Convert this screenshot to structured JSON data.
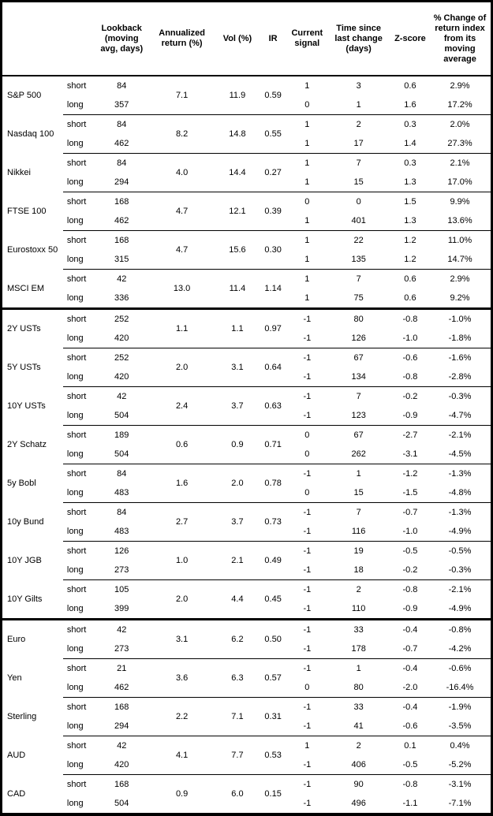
{
  "header": {
    "columns": [
      "Lookback\n(moving\navg, days)",
      "Annualized\nreturn (%)",
      "Vol (%)",
      "IR",
      "Current\nsignal",
      "Time since\nlast change\n(days)",
      "Z-score",
      "% Change of\nreturn index\nfrom its\nmoving\naverage"
    ]
  },
  "sections": [
    {
      "instruments": [
        {
          "name": "S&P 500",
          "annualized_return": "7.1",
          "vol": "11.9",
          "ir": "0.59",
          "rows": [
            {
              "horizon": "short",
              "lookback": "84",
              "signal": "1",
              "time_since_change": "3",
              "z_score": "0.6",
              "pct_change": "2.9%"
            },
            {
              "horizon": "long",
              "lookback": "357",
              "signal": "0",
              "time_since_change": "1",
              "z_score": "1.6",
              "pct_change": "17.2%"
            }
          ]
        },
        {
          "name": "Nasdaq 100",
          "annualized_return": "8.2",
          "vol": "14.8",
          "ir": "0.55",
          "rows": [
            {
              "horizon": "short",
              "lookback": "84",
              "signal": "1",
              "time_since_change": "2",
              "z_score": "0.3",
              "pct_change": "2.0%"
            },
            {
              "horizon": "long",
              "lookback": "462",
              "signal": "1",
              "time_since_change": "17",
              "z_score": "1.4",
              "pct_change": "27.3%"
            }
          ]
        },
        {
          "name": "Nikkei",
          "annualized_return": "4.0",
          "vol": "14.4",
          "ir": "0.27",
          "rows": [
            {
              "horizon": "short",
              "lookback": "84",
              "signal": "1",
              "time_since_change": "7",
              "z_score": "0.3",
              "pct_change": "2.1%"
            },
            {
              "horizon": "long",
              "lookback": "294",
              "signal": "1",
              "time_since_change": "15",
              "z_score": "1.3",
              "pct_change": "17.0%"
            }
          ]
        },
        {
          "name": "FTSE 100",
          "annualized_return": "4.7",
          "vol": "12.1",
          "ir": "0.39",
          "rows": [
            {
              "horizon": "short",
              "lookback": "168",
              "signal": "0",
              "time_since_change": "0",
              "z_score": "1.5",
              "pct_change": "9.9%"
            },
            {
              "horizon": "long",
              "lookback": "462",
              "signal": "1",
              "time_since_change": "401",
              "z_score": "1.3",
              "pct_change": "13.6%"
            }
          ]
        },
        {
          "name": "Eurostoxx 50",
          "annualized_return": "4.7",
          "vol": "15.6",
          "ir": "0.30",
          "rows": [
            {
              "horizon": "short",
              "lookback": "168",
              "signal": "1",
              "time_since_change": "22",
              "z_score": "1.2",
              "pct_change": "11.0%"
            },
            {
              "horizon": "long",
              "lookback": "315",
              "signal": "1",
              "time_since_change": "135",
              "z_score": "1.2",
              "pct_change": "14.7%"
            }
          ]
        },
        {
          "name": "MSCI EM",
          "annualized_return": "13.0",
          "vol": "11.4",
          "ir": "1.14",
          "rows": [
            {
              "horizon": "short",
              "lookback": "42",
              "signal": "1",
              "time_since_change": "7",
              "z_score": "0.6",
              "pct_change": "2.9%"
            },
            {
              "horizon": "long",
              "lookback": "336",
              "signal": "1",
              "time_since_change": "75",
              "z_score": "0.6",
              "pct_change": "9.2%"
            }
          ]
        }
      ]
    },
    {
      "instruments": [
        {
          "name": "2Y USTs",
          "annualized_return": "1.1",
          "vol": "1.1",
          "ir": "0.97",
          "rows": [
            {
              "horizon": "short",
              "lookback": "252",
              "signal": "-1",
              "time_since_change": "80",
              "z_score": "-0.8",
              "pct_change": "-1.0%"
            },
            {
              "horizon": "long",
              "lookback": "420",
              "signal": "-1",
              "time_since_change": "126",
              "z_score": "-1.0",
              "pct_change": "-1.8%"
            }
          ]
        },
        {
          "name": "5Y USTs",
          "annualized_return": "2.0",
          "vol": "3.1",
          "ir": "0.64",
          "rows": [
            {
              "horizon": "short",
              "lookback": "252",
              "signal": "-1",
              "time_since_change": "67",
              "z_score": "-0.6",
              "pct_change": "-1.6%"
            },
            {
              "horizon": "long",
              "lookback": "420",
              "signal": "-1",
              "time_since_change": "134",
              "z_score": "-0.8",
              "pct_change": "-2.8%"
            }
          ]
        },
        {
          "name": "10Y USTs",
          "annualized_return": "2.4",
          "vol": "3.7",
          "ir": "0.63",
          "rows": [
            {
              "horizon": "short",
              "lookback": "42",
              "signal": "-1",
              "time_since_change": "7",
              "z_score": "-0.2",
              "pct_change": "-0.3%"
            },
            {
              "horizon": "long",
              "lookback": "504",
              "signal": "-1",
              "time_since_change": "123",
              "z_score": "-0.9",
              "pct_change": "-4.7%"
            }
          ]
        },
        {
          "name": "2Y Schatz",
          "annualized_return": "0.6",
          "vol": "0.9",
          "ir": "0.71",
          "rows": [
            {
              "horizon": "short",
              "lookback": "189",
              "signal": "0",
              "time_since_change": "67",
              "z_score": "-2.7",
              "pct_change": "-2.1%"
            },
            {
              "horizon": "long",
              "lookback": "504",
              "signal": "0",
              "time_since_change": "262",
              "z_score": "-3.1",
              "pct_change": "-4.5%"
            }
          ]
        },
        {
          "name": "5y Bobl",
          "annualized_return": "1.6",
          "vol": "2.0",
          "ir": "0.78",
          "rows": [
            {
              "horizon": "short",
              "lookback": "84",
              "signal": "-1",
              "time_since_change": "1",
              "z_score": "-1.2",
              "pct_change": "-1.3%"
            },
            {
              "horizon": "long",
              "lookback": "483",
              "signal": "0",
              "time_since_change": "15",
              "z_score": "-1.5",
              "pct_change": "-4.8%"
            }
          ]
        },
        {
          "name": "10y Bund",
          "annualized_return": "2.7",
          "vol": "3.7",
          "ir": "0.73",
          "rows": [
            {
              "horizon": "short",
              "lookback": "84",
              "signal": "-1",
              "time_since_change": "7",
              "z_score": "-0.7",
              "pct_change": "-1.3%"
            },
            {
              "horizon": "long",
              "lookback": "483",
              "signal": "-1",
              "time_since_change": "116",
              "z_score": "-1.0",
              "pct_change": "-4.9%"
            }
          ]
        },
        {
          "name": "10Y JGB",
          "annualized_return": "1.0",
          "vol": "2.1",
          "ir": "0.49",
          "rows": [
            {
              "horizon": "short",
              "lookback": "126",
              "signal": "-1",
              "time_since_change": "19",
              "z_score": "-0.5",
              "pct_change": "-0.5%"
            },
            {
              "horizon": "long",
              "lookback": "273",
              "signal": "-1",
              "time_since_change": "18",
              "z_score": "-0.2",
              "pct_change": "-0.3%"
            }
          ]
        },
        {
          "name": "10Y Gilts",
          "annualized_return": "2.0",
          "vol": "4.4",
          "ir": "0.45",
          "rows": [
            {
              "horizon": "short",
              "lookback": "105",
              "signal": "-1",
              "time_since_change": "2",
              "z_score": "-0.8",
              "pct_change": "-2.1%"
            },
            {
              "horizon": "long",
              "lookback": "399",
              "signal": "-1",
              "time_since_change": "110",
              "z_score": "-0.9",
              "pct_change": "-4.9%"
            }
          ]
        }
      ]
    },
    {
      "instruments": [
        {
          "name": "Euro",
          "annualized_return": "3.1",
          "vol": "6.2",
          "ir": "0.50",
          "rows": [
            {
              "horizon": "short",
              "lookback": "42",
              "signal": "-1",
              "time_since_change": "33",
              "z_score": "-0.4",
              "pct_change": "-0.8%"
            },
            {
              "horizon": "long",
              "lookback": "273",
              "signal": "-1",
              "time_since_change": "178",
              "z_score": "-0.7",
              "pct_change": "-4.2%"
            }
          ]
        },
        {
          "name": "Yen",
          "annualized_return": "3.6",
          "vol": "6.3",
          "ir": "0.57",
          "rows": [
            {
              "horizon": "short",
              "lookback": "21",
              "signal": "-1",
              "time_since_change": "1",
              "z_score": "-0.4",
              "pct_change": "-0.6%"
            },
            {
              "horizon": "long",
              "lookback": "462",
              "signal": "0",
              "time_since_change": "80",
              "z_score": "-2.0",
              "pct_change": "-16.4%"
            }
          ]
        },
        {
          "name": "Sterling",
          "annualized_return": "2.2",
          "vol": "7.1",
          "ir": "0.31",
          "rows": [
            {
              "horizon": "short",
              "lookback": "168",
              "signal": "-1",
              "time_since_change": "33",
              "z_score": "-0.4",
              "pct_change": "-1.9%"
            },
            {
              "horizon": "long",
              "lookback": "294",
              "signal": "-1",
              "time_since_change": "41",
              "z_score": "-0.6",
              "pct_change": "-3.5%"
            }
          ]
        },
        {
          "name": "AUD",
          "annualized_return": "4.1",
          "vol": "7.7",
          "ir": "0.53",
          "rows": [
            {
              "horizon": "short",
              "lookback": "42",
              "signal": "1",
              "time_since_change": "2",
              "z_score": "0.1",
              "pct_change": "0.4%"
            },
            {
              "horizon": "long",
              "lookback": "420",
              "signal": "-1",
              "time_since_change": "406",
              "z_score": "-0.5",
              "pct_change": "-5.2%"
            }
          ]
        },
        {
          "name": "CAD",
          "annualized_return": "0.9",
          "vol": "6.0",
          "ir": "0.15",
          "rows": [
            {
              "horizon": "short",
              "lookback": "168",
              "signal": "-1",
              "time_since_change": "90",
              "z_score": "-0.8",
              "pct_change": "-3.1%"
            },
            {
              "horizon": "long",
              "lookback": "504",
              "signal": "-1",
              "time_since_change": "496",
              "z_score": "-1.1",
              "pct_change": "-7.1%"
            }
          ]
        }
      ]
    }
  ]
}
